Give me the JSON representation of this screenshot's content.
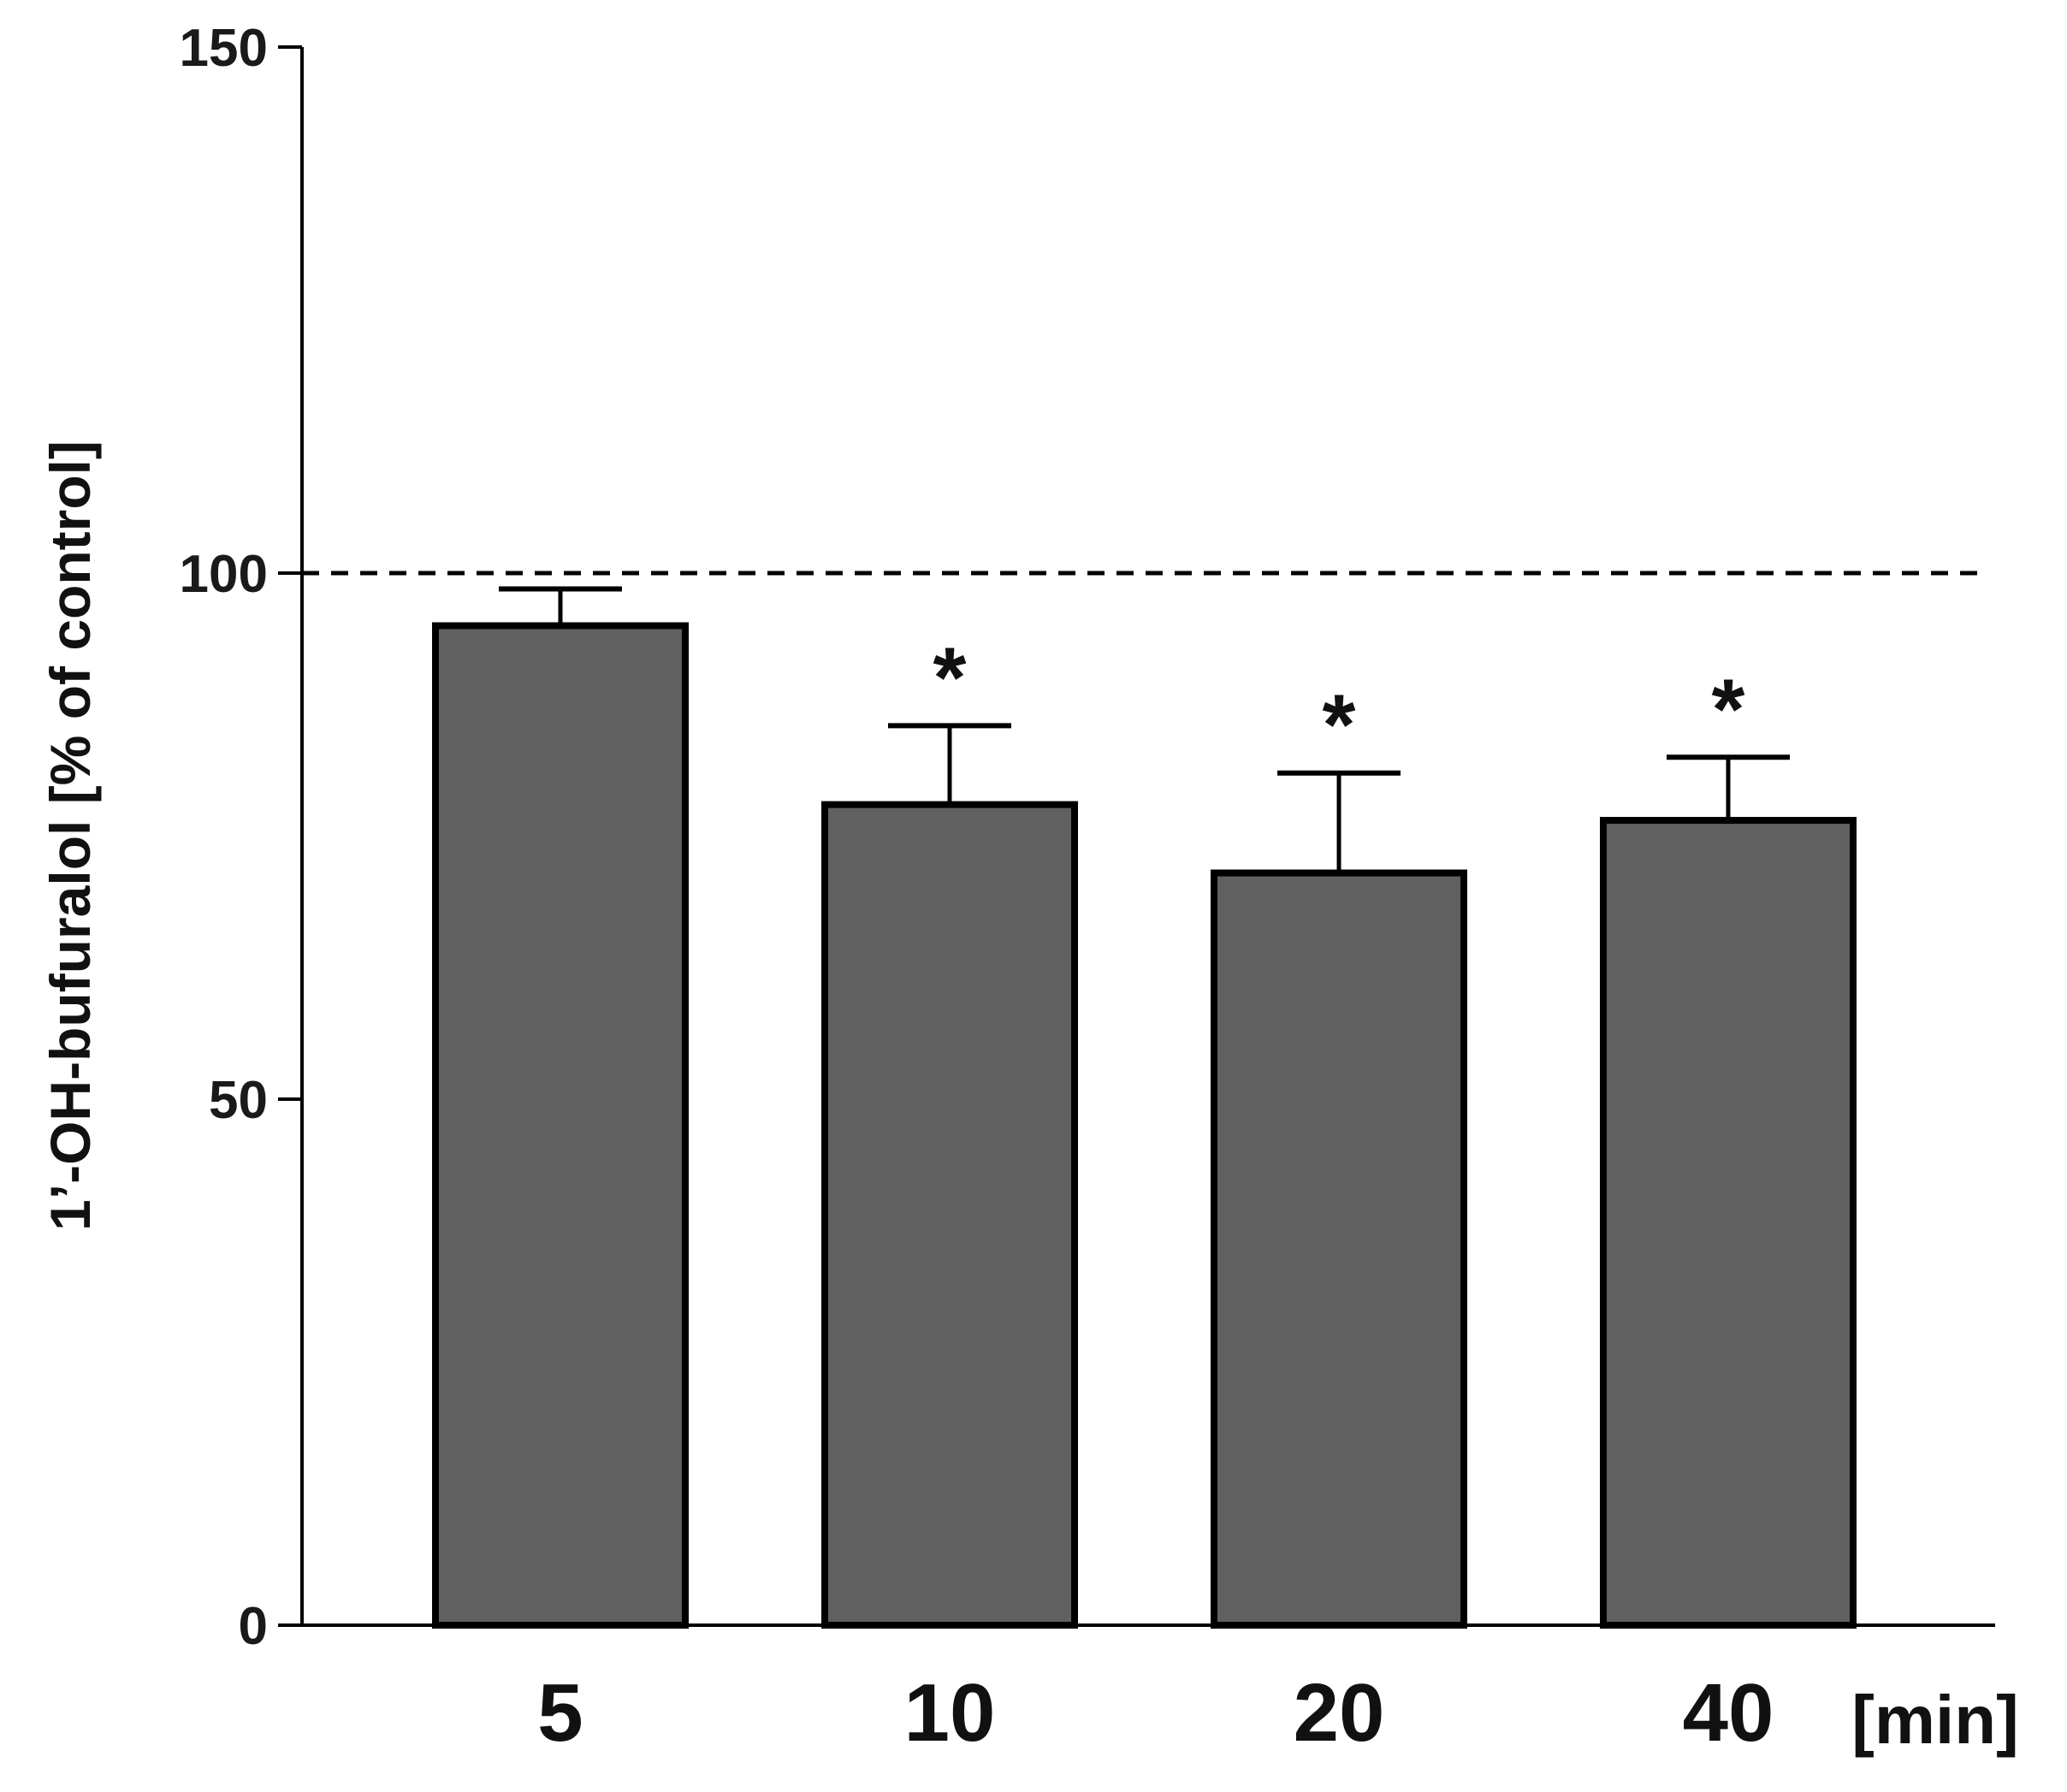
{
  "chart_data": {
    "type": "bar",
    "categories": [
      "5",
      "10",
      "20",
      "40"
    ],
    "values": [
      95,
      78,
      71.5,
      76.5
    ],
    "error_upper": [
      98.5,
      85.5,
      81,
      82.5
    ],
    "significance": [
      "",
      "*",
      "*",
      "*"
    ],
    "ylabel": "1’-OH-bufuralol [% of control]",
    "x_unit_label": "[min]",
    "ylim": [
      0,
      150
    ],
    "yticks": [
      0,
      50,
      100,
      150
    ],
    "ytick_labels": [
      "0",
      "50",
      "100",
      "150"
    ],
    "reference_line": 100,
    "bar_color": "#606060",
    "grid": false
  }
}
